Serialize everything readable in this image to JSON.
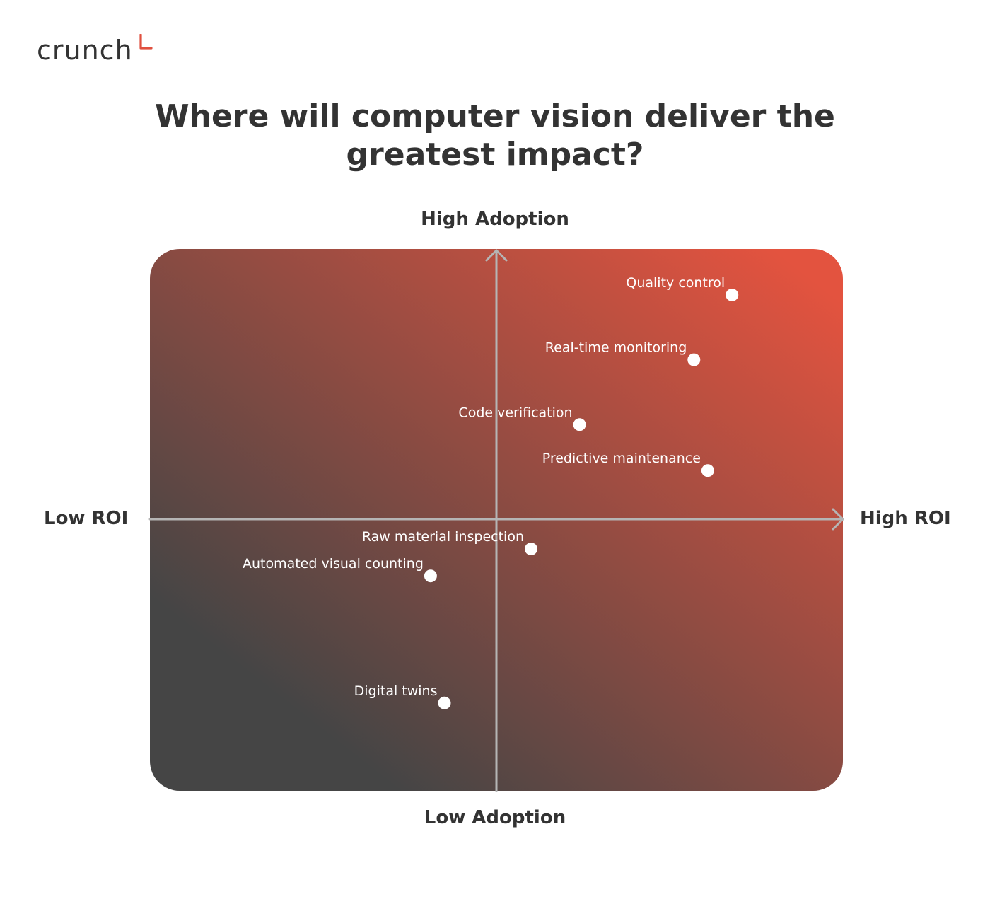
{
  "brand": {
    "logo_text": "crunch",
    "accent_color": "#e0503f"
  },
  "chart_data": {
    "type": "scatter",
    "title": "Where will computer vision deliver the greatest impact?",
    "xlabel_low": "Low ROI",
    "xlabel_high": "High ROI",
    "ylabel_low": "Low Adoption",
    "ylabel_high": "High Adoption",
    "xlim": [
      -1,
      1
    ],
    "ylim": [
      -1,
      1
    ],
    "grid": false,
    "background_gradient": {
      "from": "#454545",
      "to": "#e3533f",
      "direction": "bottom-left to top-right"
    },
    "point_color": "#ffffff",
    "axis_color": "#b5b5b5",
    "points": [
      {
        "label": "Quality control",
        "x": 0.68,
        "y": 0.83
      },
      {
        "label": "Real-time monitoring",
        "x": 0.57,
        "y": 0.59
      },
      {
        "label": "Code verification",
        "x": 0.24,
        "y": 0.35
      },
      {
        "label": "Predictive maintenance",
        "x": 0.61,
        "y": 0.18
      },
      {
        "label": "Raw material inspection",
        "x": 0.1,
        "y": -0.11
      },
      {
        "label": "Automated visual counting",
        "x": -0.19,
        "y": -0.21
      },
      {
        "label": "Digital twins",
        "x": -0.15,
        "y": -0.68
      }
    ]
  }
}
